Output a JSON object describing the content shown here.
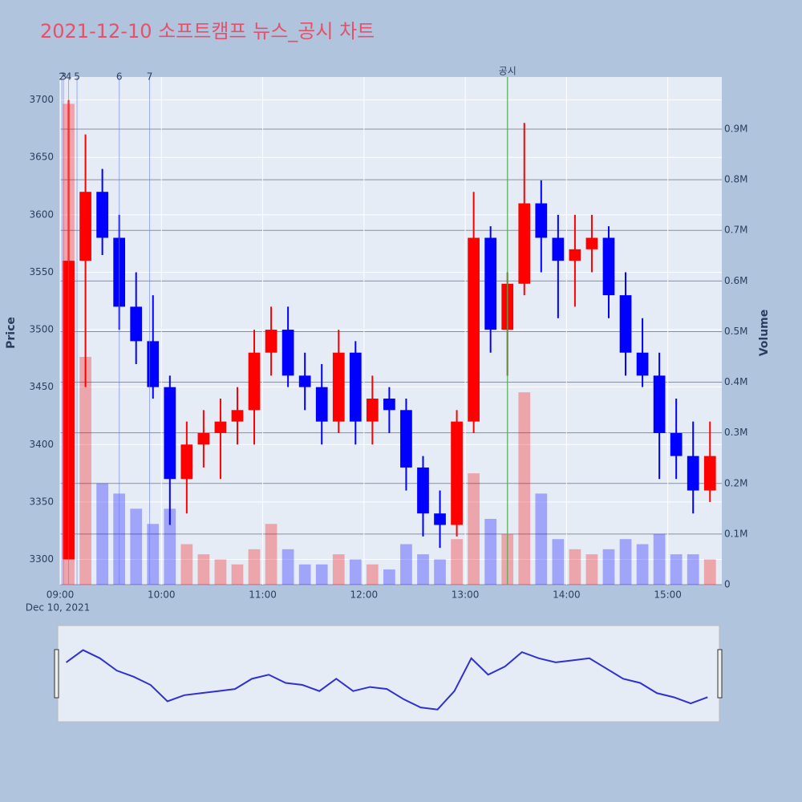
{
  "chart_data": {
    "type": "candlestick",
    "title": "2021-12-10 소프트캠프 뉴스_공시 차트",
    "x": [
      "09:00",
      "09:10",
      "09:20",
      "09:30",
      "09:40",
      "09:50",
      "10:00",
      "10:10",
      "10:20",
      "10:30",
      "10:40",
      "10:50",
      "11:00",
      "11:10",
      "11:20",
      "11:30",
      "11:40",
      "11:50",
      "12:00",
      "12:10",
      "12:20",
      "12:30",
      "12:40",
      "12:50",
      "13:00",
      "13:10",
      "13:20",
      "13:30",
      "13:40",
      "13:50",
      "14:00",
      "14:10",
      "14:20",
      "14:30",
      "14:40",
      "14:50",
      "15:00",
      "15:10",
      "15:20"
    ],
    "open": [
      3300,
      3560,
      3620,
      3580,
      3520,
      3490,
      3450,
      3370,
      3400,
      3410,
      3420,
      3430,
      3480,
      3500,
      3460,
      3450,
      3420,
      3480,
      3420,
      3440,
      3430,
      3380,
      3340,
      3330,
      3420,
      3580,
      3500,
      3540,
      3610,
      3580,
      3560,
      3570,
      3580,
      3530,
      3480,
      3460,
      3410,
      3390,
      3360
    ],
    "high": [
      3700,
      3670,
      3640,
      3600,
      3550,
      3530,
      3460,
      3420,
      3430,
      3440,
      3450,
      3500,
      3520,
      3520,
      3480,
      3470,
      3500,
      3490,
      3460,
      3450,
      3440,
      3390,
      3360,
      3430,
      3620,
      3590,
      3550,
      3680,
      3630,
      3600,
      3600,
      3600,
      3590,
      3550,
      3510,
      3480,
      3440,
      3420,
      3420
    ],
    "low": [
      3300,
      3450,
      3565,
      3500,
      3470,
      3440,
      3330,
      3340,
      3380,
      3370,
      3400,
      3400,
      3460,
      3450,
      3430,
      3400,
      3410,
      3400,
      3400,
      3410,
      3360,
      3320,
      3310,
      3320,
      3410,
      3480,
      3460,
      3530,
      3550,
      3510,
      3520,
      3550,
      3510,
      3460,
      3450,
      3370,
      3370,
      3340,
      3350
    ],
    "close": [
      3560,
      3620,
      3580,
      3520,
      3490,
      3450,
      3370,
      3400,
      3410,
      3420,
      3430,
      3480,
      3500,
      3460,
      3450,
      3420,
      3480,
      3420,
      3440,
      3430,
      3380,
      3340,
      3330,
      3420,
      3580,
      3500,
      3540,
      3610,
      3580,
      3560,
      3570,
      3580,
      3530,
      3480,
      3460,
      3410,
      3390,
      3360,
      3390
    ],
    "volume": [
      950000,
      450000,
      200000,
      180000,
      150000,
      120000,
      150000,
      80000,
      60000,
      50000,
      40000,
      70000,
      120000,
      70000,
      40000,
      40000,
      60000,
      50000,
      40000,
      30000,
      80000,
      60000,
      50000,
      90000,
      220000,
      130000,
      100000,
      380000,
      180000,
      90000,
      70000,
      60000,
      70000,
      90000,
      80000,
      100000,
      60000,
      60000,
      50000
    ],
    "colors": {
      "increasing": "#ff0000",
      "decreasing": "#0000ff"
    },
    "xlim": [
      "09:00",
      "15:32"
    ],
    "xticks": [
      "09:00",
      "10:00",
      "11:00",
      "12:00",
      "13:00",
      "14:00",
      "15:00"
    ],
    "x_sublabel": "Dec 10, 2021",
    "ylim": [
      3278,
      3720
    ],
    "yticks": [
      3300,
      3350,
      3400,
      3450,
      3500,
      3550,
      3600,
      3650,
      3700
    ],
    "yaxis_title": "Price",
    "y2lim": [
      0,
      1003000
    ],
    "y2ticks": [
      0,
      {
        "value": 100000,
        "label": "0.1M"
      },
      {
        "value": 200000,
        "label": "0.2M"
      },
      {
        "value": 300000,
        "label": "0.3M"
      },
      {
        "value": 400000,
        "label": "0.4M"
      },
      {
        "value": 500000,
        "label": "0.5M"
      },
      {
        "value": 600000,
        "label": "0.6M"
      },
      {
        "value": 700000,
        "label": "0.7M"
      },
      {
        "value": 800000,
        "label": "0.8M"
      },
      {
        "value": 900000,
        "label": "0.9M"
      }
    ],
    "y2axis_title": "Volume",
    "news": [
      {
        "label": "2",
        "x": "09:01"
      },
      {
        "label": "3",
        "x": "09:02"
      },
      {
        "label": "4",
        "x": "09:05"
      },
      {
        "label": "5",
        "x": "09:10"
      },
      {
        "label": "6",
        "x": "09:35"
      },
      {
        "label": "7",
        "x": "09:53"
      }
    ],
    "disclosure": {
      "label": "공시",
      "x": "13:25",
      "color": "#4caf50"
    },
    "rangeslider": true
  }
}
